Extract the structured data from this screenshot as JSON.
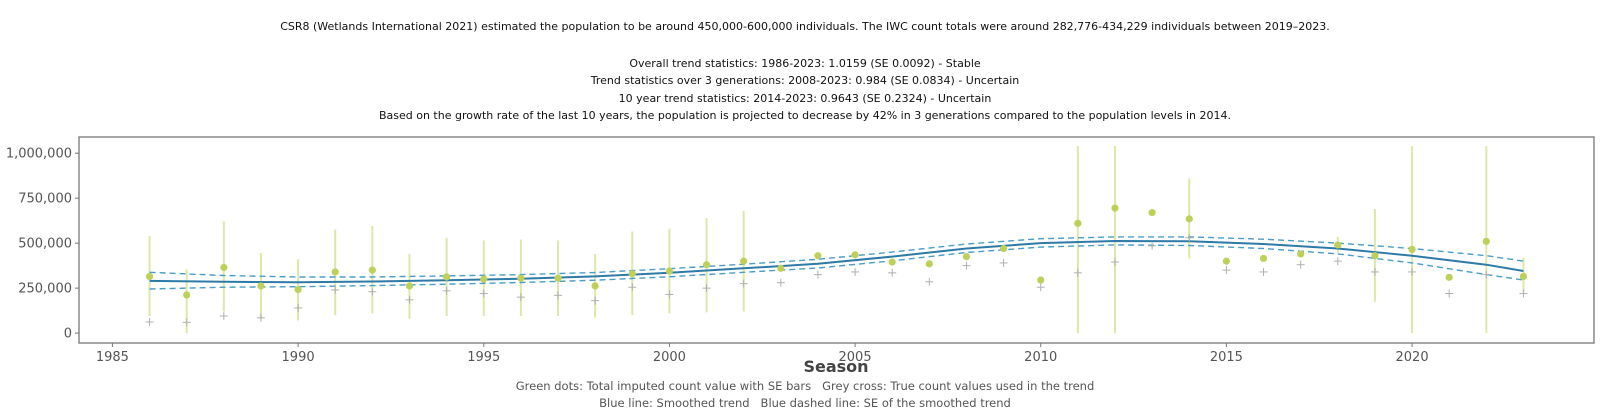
{
  "header": {
    "line1": "CSR8 (Wetlands International 2021) estimated the population to be around 450,000-600,000 individuals. The IWC count totals were around 282,776-434,229 individuals between 2019–2023.",
    "line2": "Overall trend statistics: 1986-2023: 1.0159 (SE 0.0092) - Stable",
    "line3": "Trend statistics over 3 generations: 2008-2023: 0.984 (SE 0.0834) - Uncertain",
    "line4": "10 year trend statistics: 2014-2023: 0.9643 (SE 0.2324) - Uncertain",
    "line5": "Based on the growth rate of the last 10 years, the population is projected to decrease by 42% in 3 generations compared to the population levels in 2014."
  },
  "legend": {
    "line1": "Green dots: Total imputed count value with SE bars   Grey cross: True count values used in the trend",
    "line2": "Blue line: Smoothed trend   Blue dashed line: SE of the smoothed trend"
  },
  "colors": {
    "dot": "#bfd05a",
    "se_bar": "#dde8a8",
    "cross": "#b0b0b0",
    "trend": "#2e7aa6",
    "trend_se": "#4a9dc8",
    "frame": "#888888"
  },
  "chart_data": {
    "type": "scatter",
    "title": "",
    "xlabel": "Season",
    "ylabel": "",
    "xlim": [
      1984.1,
      2024.9
    ],
    "ylim": [
      -55000,
      1090000
    ],
    "x_ticks": [
      1985,
      1990,
      1995,
      2000,
      2005,
      2010,
      2015,
      2020
    ],
    "y_ticks": [
      0,
      250000,
      500000,
      750000,
      1000000
    ],
    "y_tick_labels": [
      "0",
      "250,000",
      "500,000",
      "750,000",
      "1,000,000"
    ],
    "grid": false,
    "legend_placement": "bottom",
    "series": [
      {
        "name": "Total imputed count (green dots)",
        "x": [
          1986,
          1987,
          1988,
          1989,
          1990,
          1991,
          1992,
          1993,
          1994,
          1995,
          1996,
          1997,
          1998,
          1999,
          2000,
          2001,
          2002,
          2003,
          2004,
          2005,
          2006,
          2007,
          2008,
          2009,
          2010,
          2011,
          2012,
          2013,
          2014,
          2015,
          2016,
          2017,
          2018,
          2019,
          2020,
          2021,
          2022,
          2023
        ],
        "values": [
          315000,
          212000,
          365000,
          262000,
          242000,
          340000,
          350000,
          262000,
          312000,
          300000,
          305000,
          305000,
          262000,
          330000,
          345000,
          380000,
          400000,
          360000,
          430000,
          435000,
          395000,
          385000,
          425000,
          470000,
          295000,
          610000,
          695000,
          670000,
          635000,
          400000,
          415000,
          440000,
          490000,
          430000,
          465000,
          310000,
          510000,
          315000
        ],
        "se_low": [
          95000,
          0,
          120000,
          80000,
          70000,
          100000,
          110000,
          80000,
          95000,
          95000,
          95000,
          95000,
          85000,
          100000,
          110000,
          115000,
          120000,
          null,
          null,
          null,
          null,
          null,
          null,
          null,
          null,
          0,
          0,
          null,
          415000,
          null,
          null,
          null,
          445000,
          175000,
          0,
          null,
          0,
          230000
        ],
        "se_high": [
          540000,
          355000,
          620000,
          445000,
          410000,
          575000,
          595000,
          440000,
          530000,
          515000,
          520000,
          515000,
          440000,
          565000,
          580000,
          640000,
          680000,
          null,
          null,
          null,
          null,
          null,
          null,
          null,
          null,
          1040000,
          1040000,
          null,
          860000,
          null,
          null,
          null,
          535000,
          690000,
          1040000,
          null,
          1040000,
          420000
        ]
      },
      {
        "name": "True count values (grey crosses)",
        "x": [
          1986,
          1987,
          1988,
          1989,
          1990,
          1991,
          1992,
          1993,
          1994,
          1995,
          1996,
          1997,
          1998,
          1999,
          2000,
          2001,
          2002,
          2003,
          2004,
          2005,
          2006,
          2007,
          2008,
          2009,
          2010,
          2011,
          2012,
          2013,
          2014,
          2015,
          2016,
          2017,
          2018,
          2019,
          2020,
          2021,
          2022,
          2023
        ],
        "values": [
          62000,
          60000,
          95000,
          85000,
          140000,
          240000,
          230000,
          185000,
          235000,
          220000,
          200000,
          210000,
          180000,
          255000,
          215000,
          250000,
          275000,
          280000,
          325000,
          340000,
          335000,
          285000,
          375000,
          390000,
          255000,
          335000,
          395000,
          485000,
          530000,
          350000,
          340000,
          380000,
          400000,
          340000,
          340000,
          220000,
          325000,
          220000
        ]
      },
      {
        "name": "Smoothed trend",
        "x": [
          1986,
          1988,
          1990,
          1992,
          1994,
          1996,
          1998,
          2000,
          2002,
          2004,
          2006,
          2008,
          2010,
          2012,
          2014,
          2016,
          2018,
          2020,
          2022,
          2023
        ],
        "values": [
          290000,
          285000,
          283000,
          287000,
          294000,
          302000,
          315000,
          335000,
          360000,
          385000,
          425000,
          470000,
          500000,
          512000,
          510000,
          495000,
          470000,
          430000,
          380000,
          345000
        ],
        "se_low": [
          245000,
          255000,
          258000,
          264000,
          272000,
          281000,
          294000,
          313000,
          338000,
          362000,
          402000,
          448000,
          478000,
          490000,
          487000,
          470000,
          440000,
          390000,
          325000,
          295000
        ],
        "se_high": [
          338000,
          320000,
          312000,
          312000,
          318000,
          325000,
          337000,
          358000,
          383000,
          410000,
          450000,
          495000,
          525000,
          535000,
          535000,
          522000,
          500000,
          470000,
          430000,
          400000
        ]
      }
    ]
  }
}
